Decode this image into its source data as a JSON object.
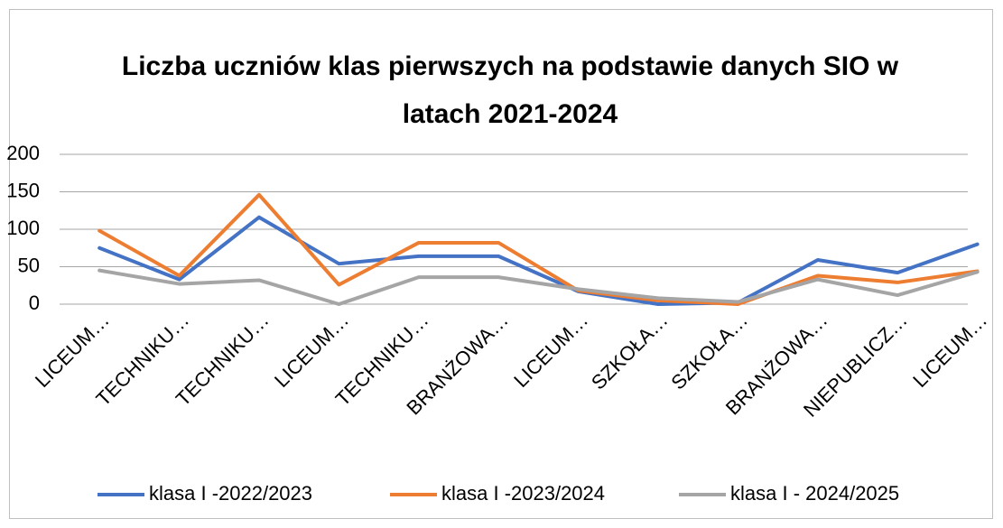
{
  "chart_data": {
    "type": "line",
    "title": [
      "Liczba uczniów klas pierwszych na podstawie danych SIO w",
      "latach  2021-2024"
    ],
    "categories": [
      "LICEUM…",
      "TECHNIKU…",
      "TECHNIKU…",
      "LICEUM…",
      "TECHNIKU…",
      "BRANŻOWA…",
      "LICEUM…",
      "SZKOŁA…",
      "SZKOŁA…",
      "BRANŻOWA…",
      "NIEPUBLICZ…",
      "LICEUM…"
    ],
    "series": [
      {
        "name": "klasa I -2022/2023",
        "color": "#4472c4",
        "values": [
          75,
          33,
          116,
          54,
          64,
          64,
          17,
          0,
          2,
          59,
          42,
          80
        ]
      },
      {
        "name": "klasa I -2023/2024",
        "color": "#ed7d31",
        "values": [
          98,
          38,
          146,
          26,
          82,
          82,
          18,
          5,
          0,
          38,
          29,
          44
        ]
      },
      {
        "name": "klasa I - 2024/2025",
        "color": "#a5a5a5",
        "values": [
          45,
          27,
          32,
          0,
          36,
          36,
          20,
          8,
          3,
          33,
          12,
          43
        ]
      }
    ],
    "ylim": [
      0,
      200
    ],
    "yticks": [
      0,
      50,
      100,
      150,
      200
    ],
    "grid": true,
    "legend": "bottom"
  }
}
